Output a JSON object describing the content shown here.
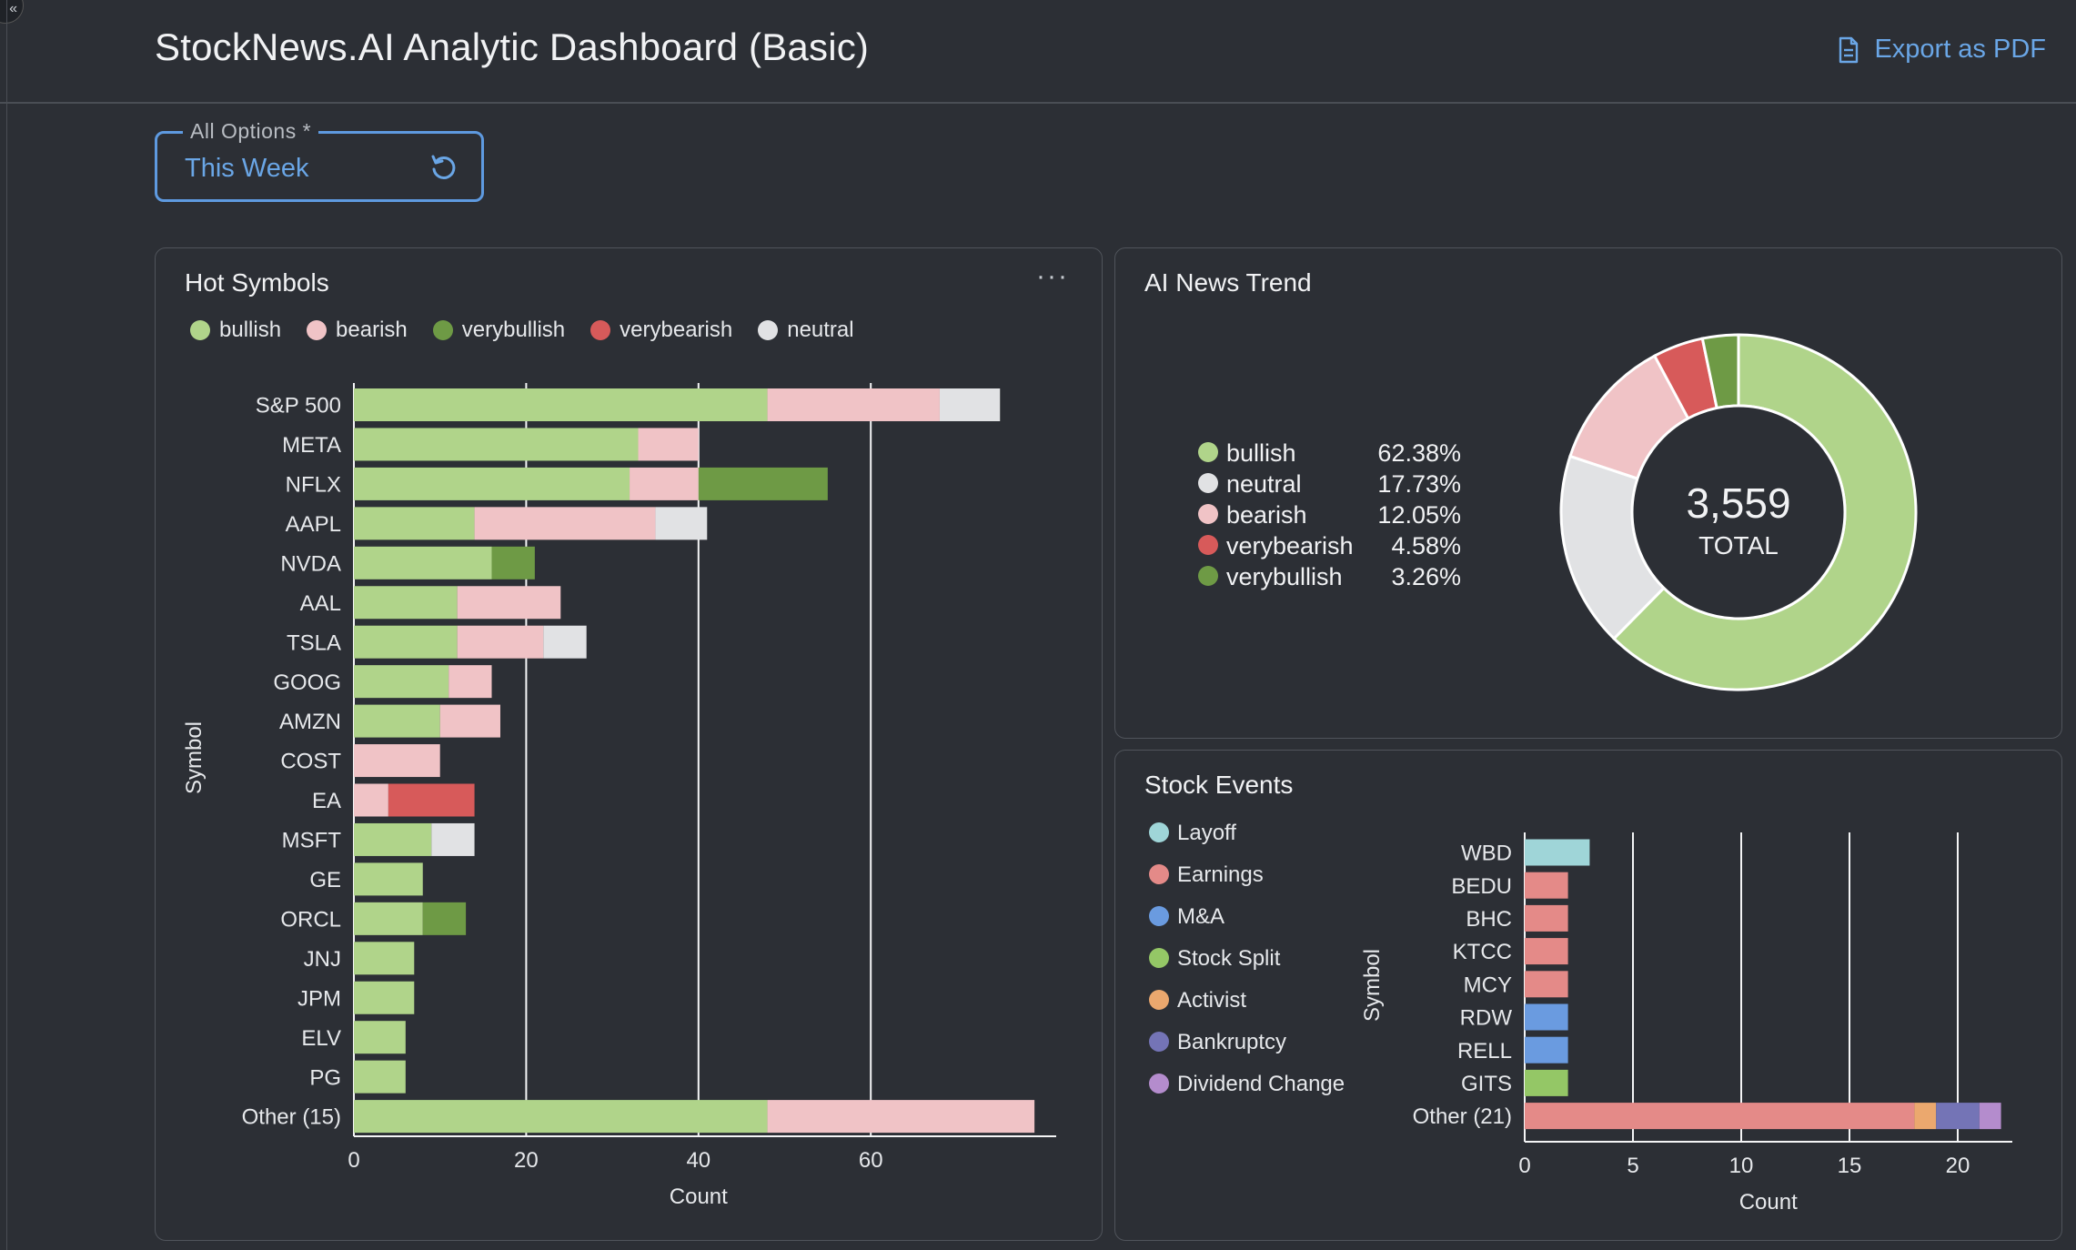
{
  "header": {
    "title": "StockNews.AI Analytic Dashboard (Basic)",
    "export_label": "Export as PDF"
  },
  "filter": {
    "label": "All Options *",
    "value": "This Week"
  },
  "hot_symbols": {
    "title": "Hot Symbols",
    "menu_label": "···",
    "legend": [
      {
        "label": "bullish",
        "color": "#b0d48a"
      },
      {
        "label": "bearish",
        "color": "#f0c3c6"
      },
      {
        "label": "verybullish",
        "color": "#6e9a45"
      },
      {
        "label": "verybearish",
        "color": "#d75a5a"
      },
      {
        "label": "neutral",
        "color": "#e1e2e4"
      }
    ]
  },
  "news_trend": {
    "title": "AI News Trend",
    "total_value": "3,559",
    "total_label": "TOTAL",
    "legend": [
      {
        "label": "bullish",
        "pct": "62.38%",
        "color": "#b0d48a"
      },
      {
        "label": "neutral",
        "pct": "17.73%",
        "color": "#e1e2e4"
      },
      {
        "label": "bearish",
        "pct": "12.05%",
        "color": "#f0c3c6"
      },
      {
        "label": "verybearish",
        "pct": "4.58%",
        "color": "#d75a5a"
      },
      {
        "label": "verybullish",
        "pct": "3.26%",
        "color": "#6e9a45"
      }
    ]
  },
  "stock_events": {
    "title": "Stock Events",
    "legend": [
      {
        "label": "Layoff",
        "color": "#9fd5d8"
      },
      {
        "label": "Earnings",
        "color": "#e48a88"
      },
      {
        "label": "M&A",
        "color": "#6a9be0"
      },
      {
        "label": "Stock Split",
        "color": "#94c766"
      },
      {
        "label": "Activist",
        "color": "#eba86e"
      },
      {
        "label": "Bankruptcy",
        "color": "#7474b6"
      },
      {
        "label": "Dividend Change",
        "color": "#b48ccd"
      }
    ]
  },
  "chart_data": [
    {
      "id": "hot_symbols",
      "type": "bar",
      "orientation": "horizontal",
      "stacked": true,
      "title": "Hot Symbols",
      "xlabel": "Count",
      "ylabel": "Symbol",
      "xlim": [
        0,
        80
      ],
      "xticks": [
        0,
        20,
        40,
        60
      ],
      "grid": true,
      "legend_position": "top-left",
      "categories": [
        "S&P 500",
        "META",
        "NFLX",
        "AAPL",
        "NVDA",
        "AAL",
        "TSLA",
        "GOOG",
        "AMZN",
        "COST",
        "EA",
        "MSFT",
        "GE",
        "ORCL",
        "JNJ",
        "JPM",
        "ELV",
        "PG",
        "Other (15)"
      ],
      "series": [
        {
          "name": "bullish",
          "color": "#b0d48a",
          "values": [
            48,
            33,
            32,
            14,
            16,
            12,
            12,
            11,
            10,
            0,
            0,
            9,
            8,
            8,
            7,
            7,
            6,
            6,
            48
          ]
        },
        {
          "name": "bearish",
          "color": "#f0c3c6",
          "values": [
            20,
            7,
            8,
            21,
            0,
            12,
            10,
            5,
            7,
            10,
            4,
            0,
            0,
            0,
            0,
            0,
            0,
            0,
            31
          ]
        },
        {
          "name": "verybullish",
          "color": "#6e9a45",
          "values": [
            0,
            0,
            15,
            0,
            5,
            0,
            0,
            0,
            0,
            0,
            0,
            0,
            0,
            5,
            0,
            0,
            0,
            0,
            0
          ]
        },
        {
          "name": "verybearish",
          "color": "#d75a5a",
          "values": [
            0,
            0,
            0,
            0,
            0,
            0,
            0,
            0,
            0,
            0,
            10,
            0,
            0,
            0,
            0,
            0,
            0,
            0,
            0
          ]
        },
        {
          "name": "neutral",
          "color": "#e1e2e4",
          "values": [
            7,
            0,
            0,
            6,
            0,
            0,
            5,
            0,
            0,
            0,
            0,
            5,
            0,
            0,
            0,
            0,
            0,
            0,
            0
          ]
        }
      ]
    },
    {
      "id": "ai_news_trend",
      "type": "pie",
      "donut": true,
      "title": "AI News Trend",
      "total": 3559,
      "slices": [
        {
          "label": "bullish",
          "value": 62.38,
          "color": "#b0d48a"
        },
        {
          "label": "neutral",
          "value": 17.73,
          "color": "#e1e2e4"
        },
        {
          "label": "bearish",
          "value": 12.05,
          "color": "#f0c3c6"
        },
        {
          "label": "verybearish",
          "value": 4.58,
          "color": "#d75a5a"
        },
        {
          "label": "verybullish",
          "value": 3.26,
          "color": "#6e9a45"
        }
      ]
    },
    {
      "id": "stock_events",
      "type": "bar",
      "orientation": "horizontal",
      "stacked": true,
      "title": "Stock Events",
      "xlabel": "Count",
      "ylabel": "Symbol",
      "xlim": [
        0,
        22.5
      ],
      "xticks": [
        0,
        5,
        10,
        15,
        20
      ],
      "grid": true,
      "legend_position": "left",
      "categories": [
        "WBD",
        "BEDU",
        "BHC",
        "KTCC",
        "MCY",
        "RDW",
        "RELL",
        "GITS",
        "Other (21)"
      ],
      "series": [
        {
          "name": "Layoff",
          "color": "#9fd5d8",
          "values": [
            3,
            0,
            0,
            0,
            0,
            0,
            0,
            0,
            0
          ]
        },
        {
          "name": "Earnings",
          "color": "#e48a88",
          "values": [
            0,
            2,
            2,
            2,
            2,
            0,
            0,
            0,
            18
          ]
        },
        {
          "name": "M&A",
          "color": "#6a9be0",
          "values": [
            0,
            0,
            0,
            0,
            0,
            2,
            2,
            0,
            0
          ]
        },
        {
          "name": "Stock Split",
          "color": "#94c766",
          "values": [
            0,
            0,
            0,
            0,
            0,
            0,
            0,
            2,
            0
          ]
        },
        {
          "name": "Activist",
          "color": "#eba86e",
          "values": [
            0,
            0,
            0,
            0,
            0,
            0,
            0,
            0,
            1
          ]
        },
        {
          "name": "Bankruptcy",
          "color": "#7474b6",
          "values": [
            0,
            0,
            0,
            0,
            0,
            0,
            0,
            0,
            2
          ]
        },
        {
          "name": "Dividend Change",
          "color": "#b48ccd",
          "values": [
            0,
            0,
            0,
            0,
            0,
            0,
            0,
            0,
            1
          ]
        }
      ]
    }
  ]
}
